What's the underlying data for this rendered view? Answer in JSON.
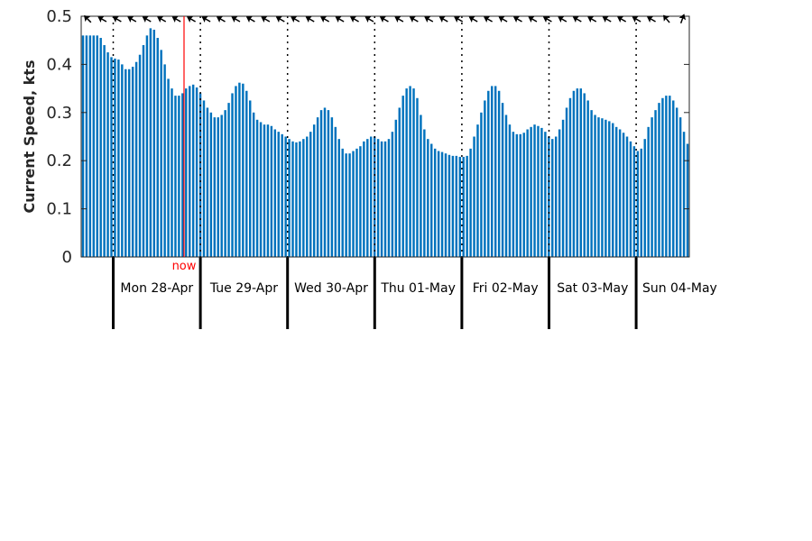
{
  "chart_data": {
    "type": "bar",
    "ylabel": "Current Speed, kts",
    "ylim": [
      0,
      0.5
    ],
    "yticks": [
      "0",
      "0.1",
      "0.2",
      "0.3",
      "0.4",
      "0.5"
    ],
    "interval_hours": 1,
    "start_hour_offset": -9,
    "values": [
      0.46,
      0.46,
      0.46,
      0.46,
      0.46,
      0.455,
      0.44,
      0.425,
      0.415,
      0.412,
      0.41,
      0.4,
      0.39,
      0.39,
      0.395,
      0.405,
      0.42,
      0.44,
      0.46,
      0.475,
      0.472,
      0.455,
      0.43,
      0.4,
      0.37,
      0.35,
      0.335,
      0.335,
      0.34,
      0.35,
      0.355,
      0.358,
      0.352,
      0.34,
      0.325,
      0.31,
      0.3,
      0.29,
      0.29,
      0.295,
      0.305,
      0.32,
      0.34,
      0.355,
      0.362,
      0.36,
      0.345,
      0.325,
      0.3,
      0.285,
      0.28,
      0.275,
      0.275,
      0.272,
      0.265,
      0.26,
      0.255,
      0.25,
      0.245,
      0.24,
      0.238,
      0.24,
      0.245,
      0.25,
      0.26,
      0.275,
      0.29,
      0.305,
      0.31,
      0.305,
      0.29,
      0.27,
      0.245,
      0.225,
      0.215,
      0.215,
      0.22,
      0.225,
      0.23,
      0.24,
      0.245,
      0.25,
      0.25,
      0.245,
      0.24,
      0.24,
      0.245,
      0.26,
      0.285,
      0.31,
      0.335,
      0.35,
      0.355,
      0.35,
      0.33,
      0.295,
      0.265,
      0.245,
      0.235,
      0.225,
      0.22,
      0.218,
      0.215,
      0.212,
      0.21,
      0.21,
      0.208,
      0.208,
      0.21,
      0.225,
      0.25,
      0.275,
      0.3,
      0.325,
      0.345,
      0.355,
      0.355,
      0.345,
      0.32,
      0.295,
      0.275,
      0.26,
      0.255,
      0.255,
      0.258,
      0.265,
      0.27,
      0.275,
      0.272,
      0.268,
      0.26,
      0.25,
      0.245,
      0.25,
      0.265,
      0.285,
      0.31,
      0.33,
      0.345,
      0.35,
      0.35,
      0.34,
      0.325,
      0.305,
      0.295,
      0.29,
      0.288,
      0.285,
      0.282,
      0.278,
      0.27,
      0.265,
      0.258,
      0.25,
      0.24,
      0.23,
      0.22,
      0.225,
      0.245,
      0.27,
      0.29,
      0.305,
      0.32,
      0.33,
      0.335,
      0.335,
      0.325,
      0.31,
      0.29,
      0.26,
      0.235
    ],
    "days": [
      "Mon 28-Apr",
      "Tue 29-Apr",
      "Wed 30-Apr",
      "Thu 01-May",
      "Fri 02-May",
      "Sat 03-May",
      "Sun 04-May"
    ],
    "now_label": "now",
    "now_hour": 19.5,
    "direction_arrows_deg": [
      315,
      300,
      300,
      300,
      300,
      300,
      300,
      300,
      300,
      300,
      300,
      300,
      300,
      300,
      300,
      300,
      300,
      300,
      300,
      300,
      300,
      300,
      300,
      300,
      300,
      300,
      300,
      300,
      300,
      300,
      300,
      300,
      300,
      300,
      300,
      300,
      300,
      300,
      300,
      320,
      20
    ],
    "colors": {
      "bar": "#0072bd",
      "now": "#ff0000",
      "axis": "#262626",
      "arrow": "#000000"
    }
  }
}
